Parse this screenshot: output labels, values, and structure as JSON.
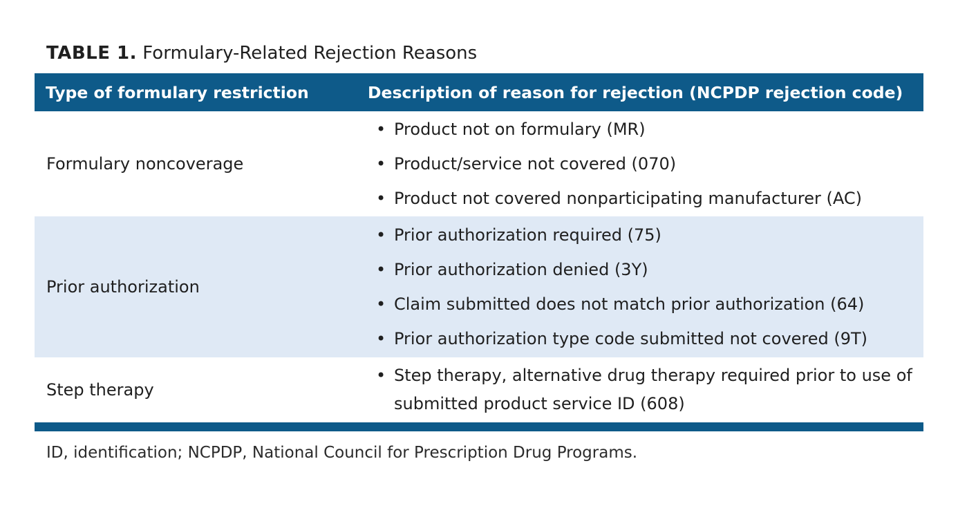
{
  "caption": {
    "label": "TABLE 1.",
    "title": "Formulary-Related Rejection Reasons"
  },
  "table": {
    "headers": [
      "Type of formulary restriction",
      "Description of reason for rejection (NCPDP rejection code)"
    ],
    "rows": [
      {
        "type": "Formulary noncoverage",
        "reasons": [
          "Product not on formulary (MR)",
          "Product/service not covered (070)",
          "Product not covered nonparticipating manufacturer (AC)"
        ]
      },
      {
        "type": "Prior authorization",
        "reasons": [
          "Prior authorization required (75)",
          "Prior authorization denied (3Y)",
          "Claim submitted does not match prior authorization (64)",
          "Prior authorization type code submitted not covered (9T)"
        ]
      },
      {
        "type": "Step therapy",
        "reasons": [
          "Step therapy, alternative drug therapy required prior to use of submitted product service ID (608)"
        ]
      }
    ]
  },
  "footnote": "ID, identification; NCPDP, National Council for Prescription Drug Programs.",
  "colors": {
    "header_bg": "#0e5a89",
    "shaded_row_bg": "#dfe9f5"
  }
}
